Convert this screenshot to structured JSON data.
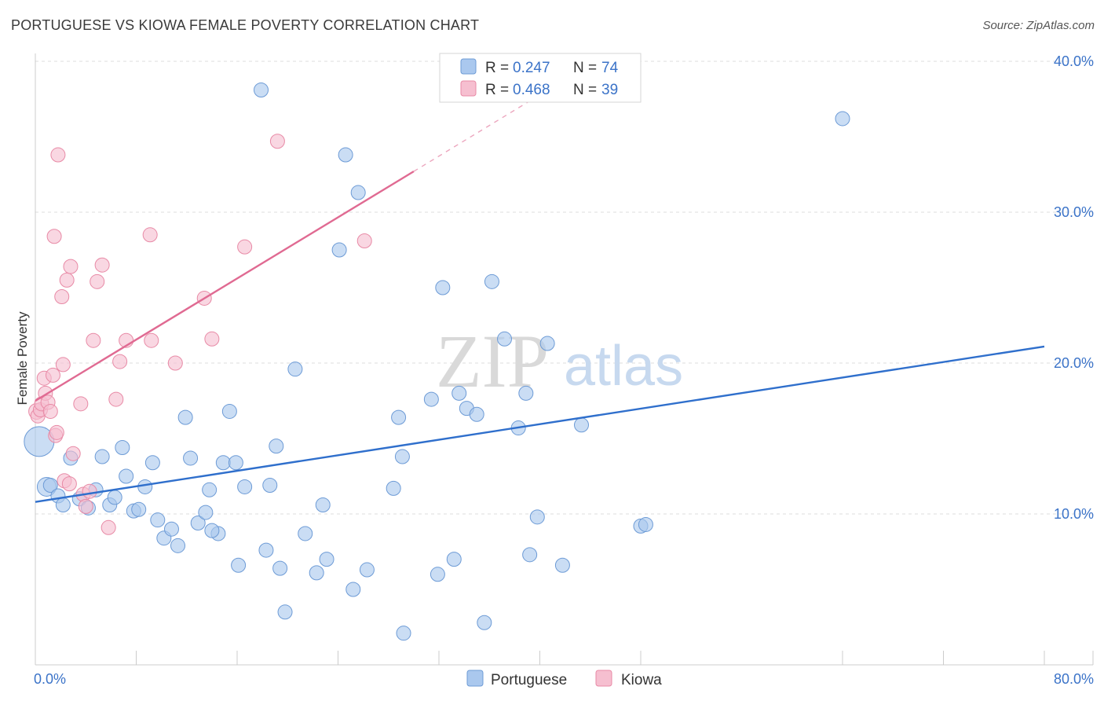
{
  "title": "PORTUGUESE VS KIOWA FEMALE POVERTY CORRELATION CHART",
  "source": "Source: ZipAtlas.com",
  "watermark": {
    "zip": "ZIP",
    "atlas": "atlas"
  },
  "colors": {
    "portuguese_fill": "#aac8ee",
    "portuguese_stroke": "#6d9bd6",
    "portuguese_line": "#2f6fcc",
    "kiowa_fill": "#f6bfd0",
    "kiowa_stroke": "#e88aa6",
    "kiowa_line": "#e06a92",
    "grid": "#dddddd",
    "tick_label": "#3b73c8"
  },
  "legend": {
    "rows": [
      {
        "r_label": "R = ",
        "r_value": "0.247",
        "n_label": "N = ",
        "n_value": "74"
      },
      {
        "r_label": "R = ",
        "r_value": "0.468",
        "n_label": "N = ",
        "n_value": "39"
      }
    ],
    "bottom": [
      "Portuguese",
      "Kiowa"
    ]
  },
  "chart_data": {
    "type": "scatter",
    "ylabel": "Female Poverty",
    "xlim": [
      0,
      80
    ],
    "ylim": [
      0,
      40
    ],
    "x_tick_labels": [
      "0.0%",
      "80.0%"
    ],
    "y_ticks": [
      10,
      20,
      30,
      40
    ],
    "y_tick_labels": [
      "10.0%",
      "20.0%",
      "30.0%",
      "40.0%"
    ],
    "grid": "horizontal dashed",
    "legend_position": "top-center",
    "series": [
      {
        "name": "Portuguese",
        "r": 0.247,
        "n": 74,
        "trend": {
          "x": [
            0,
            80
          ],
          "y": [
            10.8,
            21.1
          ]
        },
        "points": [
          [
            0.3,
            14.8,
            18
          ],
          [
            0.9,
            11.8,
            11
          ],
          [
            1.2,
            11.9,
            8
          ],
          [
            1.8,
            11.2,
            8
          ],
          [
            2.2,
            10.6,
            8
          ],
          [
            2.8,
            13.7,
            8
          ],
          [
            3.5,
            11.0,
            8
          ],
          [
            4.2,
            10.4,
            8
          ],
          [
            4.8,
            11.6,
            8
          ],
          [
            5.3,
            13.8,
            8
          ],
          [
            5.9,
            10.6,
            8
          ],
          [
            6.3,
            11.1,
            8
          ],
          [
            6.9,
            14.4,
            8
          ],
          [
            7.2,
            12.5,
            8
          ],
          [
            7.8,
            10.2,
            8
          ],
          [
            8.2,
            10.3,
            8
          ],
          [
            8.7,
            11.8,
            8
          ],
          [
            9.3,
            13.4,
            8
          ],
          [
            9.7,
            9.6,
            8
          ],
          [
            10.2,
            8.4,
            8
          ],
          [
            10.8,
            9.0,
            8
          ],
          [
            11.3,
            7.9,
            8
          ],
          [
            11.9,
            16.4,
            8
          ],
          [
            12.3,
            13.7,
            8
          ],
          [
            12.9,
            9.4,
            8
          ],
          [
            13.5,
            10.1,
            8
          ],
          [
            13.8,
            11.6,
            8
          ],
          [
            14.5,
            8.7,
            8
          ],
          [
            15.4,
            16.8,
            8
          ],
          [
            16.1,
            6.6,
            8
          ],
          [
            16.6,
            11.8,
            8
          ],
          [
            18.3,
            7.6,
            8
          ],
          [
            18.6,
            11.9,
            8
          ],
          [
            19.1,
            14.5,
            8
          ],
          [
            19.4,
            6.4,
            8
          ],
          [
            19.8,
            3.5,
            8
          ],
          [
            20.6,
            19.6,
            8
          ],
          [
            21.4,
            8.7,
            8
          ],
          [
            22.3,
            6.1,
            8
          ],
          [
            22.8,
            10.6,
            8
          ],
          [
            23.1,
            7.0,
            8
          ],
          [
            24.1,
            27.5,
            8
          ],
          [
            24.6,
            33.8,
            8
          ],
          [
            25.2,
            5.0,
            8
          ],
          [
            25.6,
            31.3,
            8
          ],
          [
            26.3,
            6.3,
            8
          ],
          [
            28.4,
            11.7,
            8
          ],
          [
            28.8,
            16.4,
            8
          ],
          [
            29.1,
            13.8,
            8
          ],
          [
            29.2,
            2.1,
            8
          ],
          [
            17.9,
            38.1,
            8
          ],
          [
            14.9,
            13.4,
            8
          ],
          [
            15.9,
            13.4,
            8
          ],
          [
            31.4,
            17.6,
            8
          ],
          [
            31.9,
            6.0,
            8
          ],
          [
            32.3,
            25.0,
            8
          ],
          [
            33.2,
            7.0,
            8
          ],
          [
            33.6,
            18.0,
            8
          ],
          [
            34.2,
            17.0,
            8
          ],
          [
            35.0,
            16.6,
            8
          ],
          [
            35.6,
            2.8,
            8
          ],
          [
            36.2,
            25.4,
            8
          ],
          [
            37.2,
            21.6,
            8
          ],
          [
            38.3,
            15.7,
            8
          ],
          [
            38.9,
            18.0,
            8
          ],
          [
            39.2,
            7.3,
            8
          ],
          [
            39.8,
            9.8,
            8
          ],
          [
            40.6,
            21.3,
            8
          ],
          [
            41.8,
            6.6,
            8
          ],
          [
            43.3,
            15.9,
            8
          ],
          [
            48.0,
            9.2,
            8
          ],
          [
            48.4,
            9.3,
            8
          ],
          [
            64.0,
            36.2,
            8
          ],
          [
            14.0,
            8.9,
            8
          ]
        ]
      },
      {
        "name": "Kiowa",
        "r": 0.468,
        "n": 39,
        "trend": {
          "x": [
            0,
            30
          ],
          "y": [
            17.5,
            32.7
          ],
          "dash_x": [
            30,
            43
          ],
          "dash_y": [
            32.7,
            39.3
          ]
        },
        "points": [
          [
            0.1,
            16.8,
            9
          ],
          [
            0.2,
            16.5,
            8
          ],
          [
            0.4,
            16.9,
            8
          ],
          [
            0.5,
            17.3,
            8
          ],
          [
            0.7,
            19.0,
            8
          ],
          [
            0.8,
            18.0,
            8
          ],
          [
            1.0,
            17.4,
            8
          ],
          [
            1.2,
            16.8,
            8
          ],
          [
            1.4,
            19.2,
            8
          ],
          [
            1.5,
            28.4,
            8
          ],
          [
            1.6,
            15.2,
            8
          ],
          [
            1.7,
            15.4,
            8
          ],
          [
            1.8,
            33.8,
            8
          ],
          [
            2.1,
            24.4,
            8
          ],
          [
            2.2,
            19.9,
            8
          ],
          [
            2.3,
            12.2,
            8
          ],
          [
            2.5,
            25.5,
            8
          ],
          [
            2.7,
            12.0,
            8
          ],
          [
            2.8,
            26.4,
            8
          ],
          [
            3.0,
            14.0,
            8
          ],
          [
            3.6,
            17.3,
            8
          ],
          [
            3.8,
            11.3,
            8
          ],
          [
            4.0,
            10.5,
            8
          ],
          [
            4.3,
            11.5,
            8
          ],
          [
            4.6,
            21.5,
            8
          ],
          [
            4.9,
            25.4,
            8
          ],
          [
            5.3,
            26.5,
            8
          ],
          [
            5.8,
            9.1,
            8
          ],
          [
            6.4,
            17.6,
            8
          ],
          [
            6.7,
            20.1,
            8
          ],
          [
            7.2,
            21.5,
            8
          ],
          [
            9.1,
            28.5,
            8
          ],
          [
            9.2,
            21.5,
            8
          ],
          [
            11.1,
            20.0,
            8
          ],
          [
            13.4,
            24.3,
            8
          ],
          [
            14.0,
            21.6,
            8
          ],
          [
            16.6,
            27.7,
            8
          ],
          [
            19.2,
            34.7,
            8
          ],
          [
            26.1,
            28.1,
            8
          ]
        ]
      }
    ]
  }
}
